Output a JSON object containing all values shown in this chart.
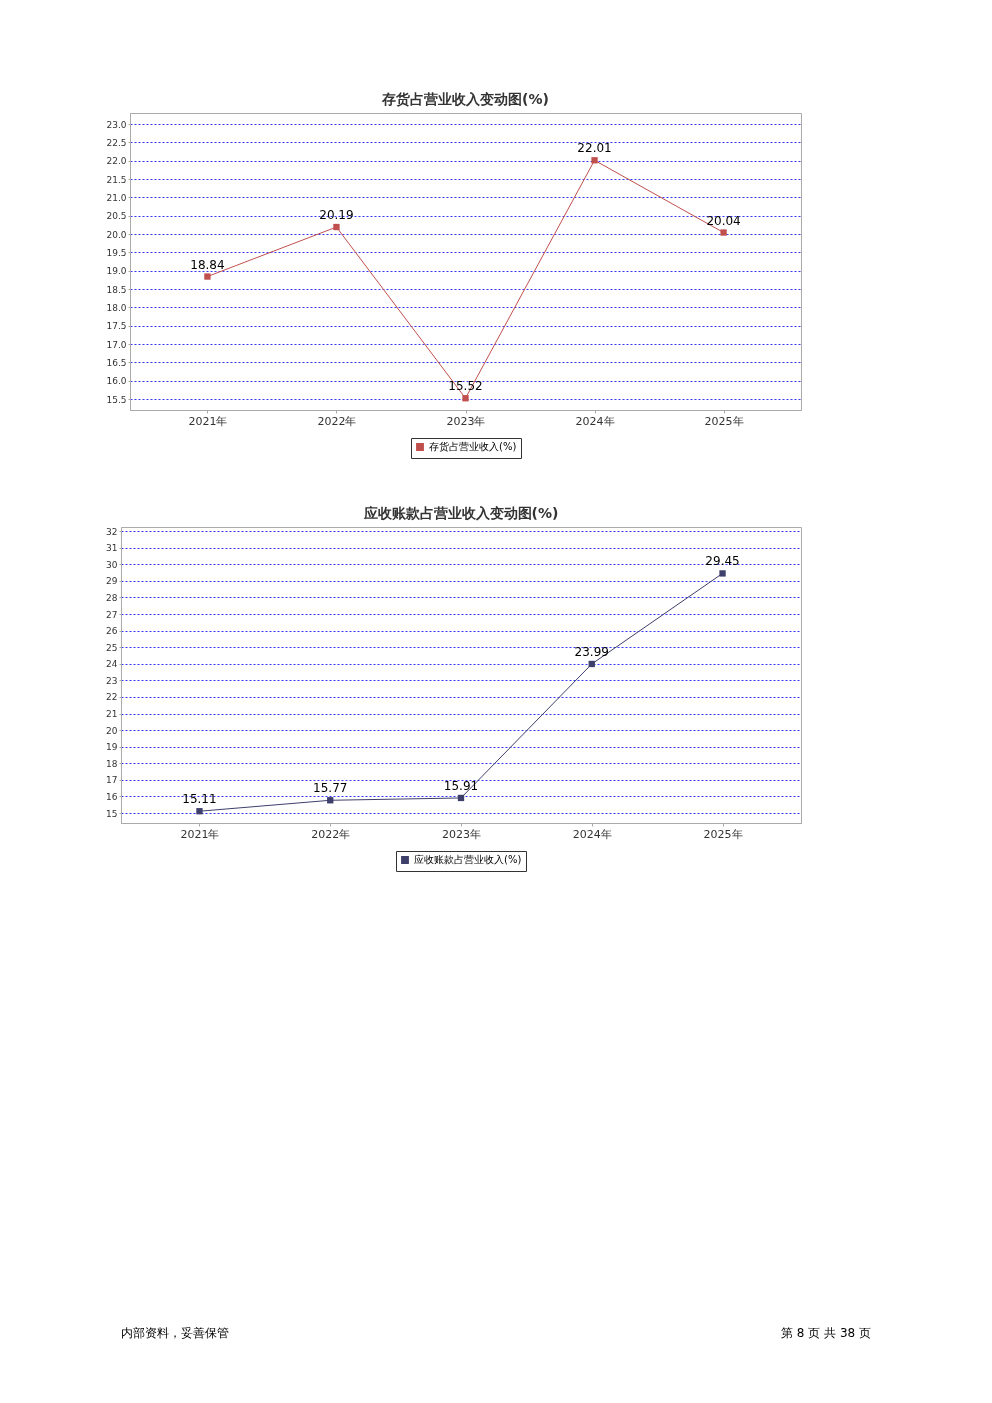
{
  "chart_data": [
    {
      "type": "line",
      "title": "存货占营业收入变动图(%)",
      "categories": [
        "2021年",
        "2022年",
        "2023年",
        "2024年",
        "2025年"
      ],
      "series": [
        {
          "name": "存货占营业收入(%)",
          "color": "#c0504d",
          "values": [
            18.84,
            20.19,
            15.52,
            22.01,
            20.04
          ]
        }
      ],
      "ylim": [
        15.2,
        23.3
      ],
      "yticks": [
        15.5,
        {
          "value": 16,
          "label": "16.0"
        },
        16.5,
        {
          "value": 17,
          "label": "17.0"
        },
        17.5,
        {
          "value": 18,
          "label": "18.0"
        },
        18.5,
        {
          "value": 19,
          "label": "19.0"
        },
        19.5,
        {
          "value": 20,
          "label": "20.0"
        },
        20.5,
        {
          "value": 21,
          "label": "21.0"
        },
        21.5,
        {
          "value": 22,
          "label": "22.0"
        },
        22.5,
        {
          "value": 23,
          "label": "23.0"
        }
      ],
      "grid": "y",
      "legend": "bottom",
      "marker": "square",
      "data_labels": true
    },
    {
      "type": "line",
      "title": "应收账款占营业收入变动图(%)",
      "categories": [
        "2021年",
        "2022年",
        "2023年",
        "2024年",
        "2025年"
      ],
      "series": [
        {
          "name": "应收账款占营业收入(%)",
          "color": "#3f3f6b",
          "values": [
            15.11,
            15.77,
            15.91,
            23.99,
            29.45
          ]
        }
      ],
      "ylim": [
        14.4,
        32.25
      ],
      "yticks": [
        15,
        16,
        17,
        18,
        19,
        20,
        21,
        22,
        23,
        24,
        25,
        26,
        27,
        28,
        29,
        30,
        31,
        32
      ],
      "grid": "y",
      "legend": "bottom",
      "marker": "square",
      "data_labels": true,
      "annotations": [
        "内部资料，妥善保管",
        "第 8 页 共 38 页"
      ]
    }
  ]
}
